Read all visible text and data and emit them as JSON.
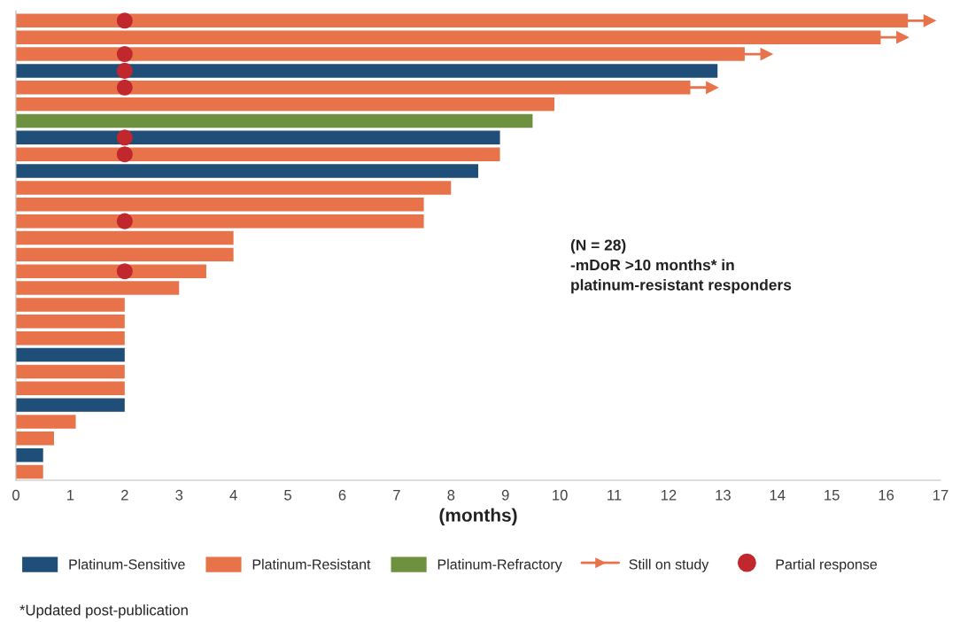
{
  "chart_data": {
    "type": "bar",
    "orientation": "horizontal",
    "stacked": true,
    "xlabel": "(months)",
    "categories": [
      null,
      null,
      null,
      null,
      null,
      null,
      null,
      null,
      null,
      null,
      null,
      null,
      null,
      null,
      null,
      null,
      null,
      null,
      null,
      null,
      null,
      null,
      null,
      null,
      null,
      null,
      null,
      null
    ],
    "series": [
      {
        "name": "Platinum-Sensitive",
        "color": "#1f4e79",
        "values": [
          null,
          null,
          null,
          12.9,
          null,
          null,
          null,
          8.9,
          null,
          8.5,
          null,
          null,
          null,
          null,
          null,
          null,
          null,
          null,
          null,
          null,
          2.0,
          null,
          null,
          2.0,
          null,
          null,
          0.5,
          null
        ]
      },
      {
        "name": "Platinum-Resistant",
        "color": "#e8734a",
        "values": [
          16.4,
          15.9,
          13.4,
          null,
          12.4,
          9.9,
          null,
          null,
          8.9,
          null,
          8.0,
          7.5,
          7.5,
          4.0,
          4.0,
          3.5,
          3.0,
          2.0,
          2.0,
          2.0,
          null,
          2.0,
          2.0,
          null,
          1.1,
          0.7,
          null,
          0.5
        ]
      },
      {
        "name": "Platinum-Refractory",
        "color": "#6e9140",
        "values": [
          null,
          null,
          null,
          null,
          null,
          null,
          9.5,
          null,
          null,
          null,
          null,
          null,
          null,
          null,
          null,
          null,
          null,
          null,
          null,
          null,
          null,
          null,
          null,
          null,
          null,
          null,
          null,
          null
        ]
      },
      {
        "name": "Still on study",
        "type": "scatter",
        "marker": "triangle",
        "color": "#e8734a",
        "values": [
          16.8,
          16.3,
          13.8,
          null,
          12.8,
          null,
          null,
          null,
          null,
          null,
          null,
          null,
          null,
          null,
          null,
          null,
          null,
          null,
          null,
          null,
          null,
          null,
          null,
          null,
          null,
          null,
          null,
          null
        ]
      },
      {
        "name": "Partial response",
        "type": "scatter",
        "marker": "circle",
        "color": "#c0282d",
        "values": [
          2.0,
          null,
          2.0,
          2.0,
          2.0,
          null,
          null,
          2.0,
          2.0,
          null,
          null,
          null,
          2.0,
          null,
          null,
          2.0,
          null,
          null,
          null,
          null,
          null,
          null,
          null,
          null,
          null,
          null,
          null,
          null
        ]
      }
    ],
    "xlim": [
      0,
      17
    ],
    "xticks": [
      0,
      1,
      2,
      3,
      4,
      5,
      6,
      7,
      8,
      9,
      10,
      11,
      12,
      13,
      14,
      15,
      16,
      17
    ],
    "tick_labels": "x",
    "grid": false,
    "legend": "bottom",
    "annotations": [
      "(N = 28)\n-mDoR >10 months* in\nplatinum-resistant responders",
      "*Updated post-publication"
    ]
  }
}
